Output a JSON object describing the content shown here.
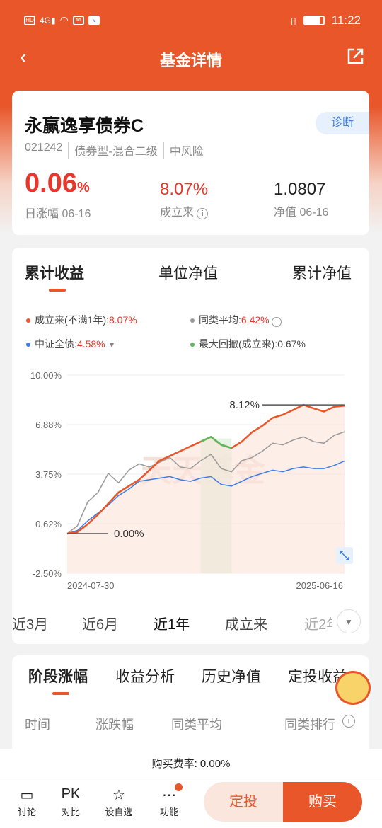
{
  "status_bar": {
    "left_icons": [
      "HD",
      "4G",
      "wifi",
      "mail",
      "app"
    ],
    "time": "11:22"
  },
  "nav": {
    "title": "基金详情"
  },
  "fund": {
    "name": "永赢逸享债券C",
    "diagnose_label": "诊断",
    "code": "021242",
    "type": "债券型-混合二级",
    "risk": "中风险",
    "daily_value": "0.06",
    "daily_unit": "%",
    "daily_label": "日涨幅 06-16",
    "since_value": "8.07%",
    "since_label": "成立来",
    "nav_value": "1.0807",
    "nav_label": "净值 06-16"
  },
  "chart_tabs": [
    "累计收益",
    "单位净值",
    "累计净值"
  ],
  "legend": [
    {
      "label": "成立来(不满1年):",
      "value": "8.07%",
      "color": "#e8562a"
    },
    {
      "label": "同类平均:",
      "value": "6.42%",
      "color": "#999999"
    },
    {
      "label": "中证全债:",
      "value": "4.58%",
      "color": "#3d7de5"
    },
    {
      "label": "最大回撤(成立来):",
      "value": "0.67%",
      "color": "#5cb85c"
    }
  ],
  "chart_data": {
    "type": "line",
    "y_ticks": [
      "10.00%",
      "6.88%",
      "3.75%",
      "0.62%",
      "-2.50%"
    ],
    "ylim": [
      -2.5,
      10.0
    ],
    "x_labels": [
      "2024-07-30",
      "2025-06-16"
    ],
    "annotations": {
      "start": "0.00%",
      "peak": "8.12%"
    },
    "watermark": "天天基金",
    "series": [
      {
        "name": "成立来(不满1年)",
        "color": "#e8562a",
        "values": [
          0.0,
          0.1,
          0.6,
          1.2,
          1.9,
          2.6,
          3.0,
          3.4,
          4.0,
          4.6,
          4.9,
          5.2,
          5.5,
          5.8,
          6.1,
          5.6,
          5.4,
          5.8,
          6.4,
          6.8,
          7.3,
          7.5,
          7.8,
          8.12,
          7.9,
          7.7,
          8.0,
          8.07
        ]
      },
      {
        "name": "同类平均",
        "color": "#999999",
        "values": [
          0.0,
          0.5,
          2.0,
          2.6,
          3.8,
          3.2,
          4.0,
          4.4,
          4.2,
          4.5,
          4.8,
          4.2,
          4.1,
          4.6,
          5.0,
          4.1,
          3.9,
          4.6,
          4.8,
          5.2,
          5.7,
          5.6,
          5.9,
          6.1,
          5.8,
          5.7,
          6.2,
          6.42
        ]
      },
      {
        "name": "中证全债",
        "color": "#3d7de5",
        "values": [
          0.0,
          0.2,
          0.8,
          1.3,
          1.8,
          2.4,
          2.8,
          3.3,
          3.4,
          3.5,
          3.6,
          3.4,
          3.3,
          3.5,
          3.6,
          3.1,
          3.0,
          3.3,
          3.6,
          3.8,
          4.0,
          3.9,
          4.1,
          4.2,
          4.1,
          4.1,
          4.3,
          4.58
        ]
      }
    ],
    "drawdown_range": [
      13,
      16
    ]
  },
  "ranges": {
    "items": [
      "近3月",
      "近6月",
      "近1年",
      "成立来",
      "近2年"
    ],
    "selected": "近1年"
  },
  "period_tabs": [
    "阶段涨幅",
    "收益分析",
    "历史净值",
    "定投收益"
  ],
  "period_table": {
    "headers": [
      "时间",
      "涨跌幅",
      "同类平均",
      "同类排行"
    ]
  },
  "bottom": {
    "fee": "购买费率: 0.00%",
    "actions": [
      "讨论",
      "对比",
      "设自选",
      "功能"
    ],
    "pk_label": "PK",
    "dingtou": "定投",
    "buy": "购买"
  }
}
